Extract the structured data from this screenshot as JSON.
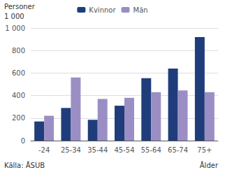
{
  "chart_data": {
    "type": "bar",
    "ylabel": [
      "Personer",
      "1 000"
    ],
    "xlabel": "Ålder",
    "annotations": [
      "Källa: ÅSUB"
    ],
    "categories": [
      "-24",
      "25-34",
      "35-44",
      "45-54",
      "55-64",
      "65-74",
      "75+"
    ],
    "series": [
      {
        "name": "Kvinnor",
        "color": "#1F3D7A",
        "values": [
          170,
          290,
          185,
          310,
          555,
          640,
          920
        ]
      },
      {
        "name": "Män",
        "color": "#9B8EC4",
        "values": [
          220,
          560,
          370,
          380,
          430,
          445,
          430
        ]
      }
    ],
    "ylim": [
      0,
      1000
    ],
    "yticks": [
      0,
      200,
      400,
      600,
      800,
      {
        "value": 1000,
        "label": "1 000"
      }
    ],
    "grid": true,
    "legend": "top"
  }
}
